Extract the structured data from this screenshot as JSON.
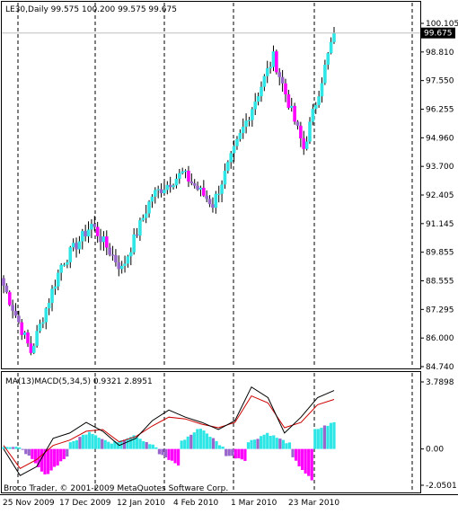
{
  "main_panel": {
    "header": "LE30,Daily  99.575 100.200 99.575 99.675",
    "price_ticks": [
      "100.105",
      "98.810",
      "97.550",
      "96.255",
      "94.960",
      "93.700",
      "92.405",
      "91.145",
      "89.855",
      "88.555",
      "87.295",
      "86.000",
      "84.740"
    ],
    "current_price_tag": "99.675"
  },
  "macd_panel": {
    "header": "MA(13)MACD(5,34,5) 0.9321 2.8951",
    "ticks": [
      "3.7898",
      "0.00",
      "-2.0501"
    ]
  },
  "date_ticks": [
    "25 Nov 2009",
    "17 Dec 2009",
    "12 Jan 2010",
    "4 Feb 2010",
    "1 Mar 2010",
    "23 Mar 2010"
  ],
  "copyright": "Broco Trader, © 2001-2009 MetaQuotes Software Corp.",
  "colors": {
    "up_bar": "#2fe6e6",
    "down_bar_price": "#9966cc",
    "down_bar_pink": "#ff00ff",
    "macd_line": "#000000",
    "signal_line": "#cc0000"
  },
  "chart_data": {
    "type": "candlestick",
    "price": {
      "ylim": [
        84.74,
        100.105
      ],
      "segments": [
        {
          "start_price": 88.7,
          "end_price": 85.4,
          "direction": "down"
        },
        {
          "start_price": 85.4,
          "end_price": 89.3,
          "direction": "up"
        },
        {
          "start_price": 89.3,
          "end_price": 91.1,
          "direction": "up"
        },
        {
          "start_price": 91.1,
          "end_price": 89.1,
          "direction": "down"
        },
        {
          "start_price": 89.1,
          "end_price": 92.4,
          "direction": "up"
        },
        {
          "start_price": 92.4,
          "end_price": 93.4,
          "direction": "up"
        },
        {
          "start_price": 93.4,
          "end_price": 92.0,
          "direction": "down"
        },
        {
          "start_price": 92.0,
          "end_price": 95.4,
          "direction": "up"
        },
        {
          "start_price": 95.4,
          "end_price": 98.6,
          "direction": "up"
        },
        {
          "start_price": 98.6,
          "end_price": 94.5,
          "direction": "down"
        },
        {
          "start_price": 94.5,
          "end_price": 99.7,
          "direction": "up"
        }
      ],
      "last_close": 99.675
    },
    "macd": {
      "ylim": [
        -2.0501,
        3.7898
      ],
      "histogram_segments": [
        {
          "start": 0.2,
          "end": 0.0,
          "sign": "neg"
        },
        {
          "start": 0.0,
          "end": -1.5,
          "sign": "neg"
        },
        {
          "start": -1.5,
          "end": -0.4,
          "sign": "neg"
        },
        {
          "start": 0.2,
          "end": 1.0,
          "sign": "pos"
        },
        {
          "start": 1.0,
          "end": 0.3,
          "sign": "pos"
        },
        {
          "start": 0.3,
          "end": 0.8,
          "sign": "pos"
        },
        {
          "start": 0.8,
          "end": 0.1,
          "sign": "pos"
        },
        {
          "start": -0.2,
          "end": -0.9,
          "sign": "neg"
        },
        {
          "start": 0.3,
          "end": 1.2,
          "sign": "pos"
        },
        {
          "start": 1.2,
          "end": 0.1,
          "sign": "pos"
        },
        {
          "start": -0.3,
          "end": -0.6,
          "sign": "neg"
        },
        {
          "start": 0.3,
          "end": 0.9,
          "sign": "pos"
        },
        {
          "start": 0.9,
          "end": 0.3,
          "sign": "pos"
        },
        {
          "start": -0.3,
          "end": -1.8,
          "sign": "neg"
        },
        {
          "start": 1.0,
          "end": 1.5,
          "sign": "pos"
        }
      ],
      "macd_line": [
        0.0,
        -1.5,
        -1.0,
        0.6,
        0.9,
        1.5,
        1.0,
        0.2,
        0.6,
        1.6,
        2.2,
        1.8,
        1.5,
        1.1,
        1.6,
        3.5,
        2.9,
        0.9,
        1.8,
        2.9,
        3.3
      ],
      "signal_line": [
        0.2,
        -1.1,
        -0.6,
        0.2,
        0.5,
        1.0,
        1.1,
        0.4,
        0.7,
        1.3,
        1.8,
        1.7,
        1.4,
        1.2,
        1.5,
        3.0,
        2.6,
        1.2,
        1.5,
        2.5,
        2.8
      ]
    },
    "x_ticks": [
      "25 Nov 2009",
      "17 Dec 2009",
      "12 Jan 2010",
      "4 Feb 2010",
      "1 Mar 2010",
      "23 Mar 2010"
    ]
  }
}
